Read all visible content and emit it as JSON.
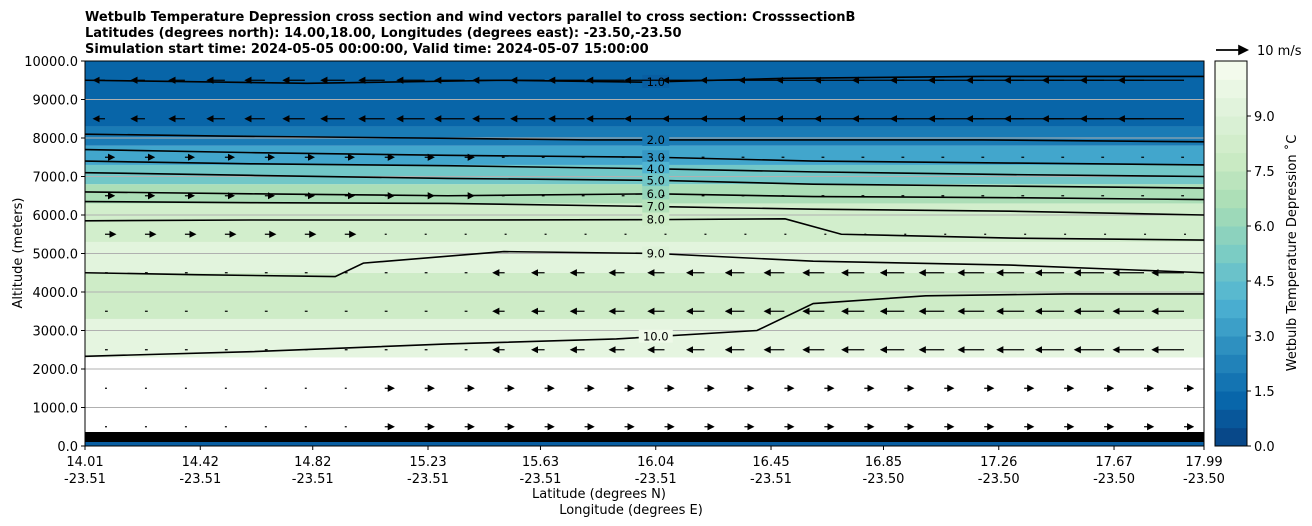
{
  "chart_data": {
    "type": "heatmap",
    "title": [
      "Wetbulb Temperature Depression cross section and wind vectors parallel to cross section: CrosssectionB",
      "Latitudes (degrees north): 14.00,18.00, Longitudes (degrees east): -23.50,-23.50",
      "Simulation start time: 2024-05-05 00:00:00, Valid time: 2024-05-07 15:00:00"
    ],
    "xlabel": "Latitude (degrees N)",
    "xlabel2": "Longitude (degrees E)",
    "ylabel": "Altitude (meters)",
    "xlim": [
      14.01,
      17.99
    ],
    "ylim": [
      0,
      10000
    ],
    "grid": "horizontal",
    "x_ticks": [
      {
        "lat": "14.01",
        "lon": "-23.51",
        "value": 14.01
      },
      {
        "lat": "14.42",
        "lon": "-23.51",
        "value": 14.42
      },
      {
        "lat": "14.82",
        "lon": "-23.51",
        "value": 14.82
      },
      {
        "lat": "15.23",
        "lon": "-23.51",
        "value": 15.23
      },
      {
        "lat": "15.63",
        "lon": "-23.51",
        "value": 15.63
      },
      {
        "lat": "16.04",
        "lon": "-23.51",
        "value": 16.04
      },
      {
        "lat": "16.45",
        "lon": "-23.51",
        "value": 16.45
      },
      {
        "lat": "16.85",
        "lon": "-23.50",
        "value": 16.85
      },
      {
        "lat": "17.26",
        "lon": "-23.50",
        "value": 17.26
      },
      {
        "lat": "17.67",
        "lon": "-23.50",
        "value": 17.67
      },
      {
        "lat": "17.99",
        "lon": "-23.50",
        "value": 17.99
      }
    ],
    "y_ticks": [
      {
        "label": "0.0",
        "value": 0
      },
      {
        "label": "1000.0",
        "value": 1000
      },
      {
        "label": "2000.0",
        "value": 2000
      },
      {
        "label": "3000.0",
        "value": 3000
      },
      {
        "label": "4000.0",
        "value": 4000
      },
      {
        "label": "5000.0",
        "value": 5000
      },
      {
        "label": "6000.0",
        "value": 6000
      },
      {
        "label": "7000.0",
        "value": 7000
      },
      {
        "label": "8000.0",
        "value": 8000
      },
      {
        "label": "9000.0",
        "value": 9000
      },
      {
        "label": "10000.0",
        "value": 10000
      }
    ],
    "colorbar": {
      "label": "Wetbulb Temperature Depression ˚C",
      "range": [
        0,
        10.5
      ],
      "ticks": [
        "0.0",
        "1.5",
        "3.0",
        "4.5",
        "6.0",
        "7.5",
        "9.0"
      ],
      "tick_values": [
        0,
        1.5,
        3.0,
        4.5,
        6.0,
        7.5,
        9.0
      ],
      "colormap": "GnBu_r",
      "colors": [
        "#084081",
        "#0868ac",
        "#2b8cbe",
        "#4eb3d3",
        "#7bccc4",
        "#a8ddb5",
        "#ccebc5",
        "#e0f3db",
        "#f7fcf0"
      ]
    },
    "vector_key": {
      "label": "10 m/s",
      "speed": 10
    },
    "layers": [
      {
        "from_m": 0,
        "to_m": 300,
        "value": 1.0
      },
      {
        "from_m": 300,
        "to_m": 2300,
        "value": 10.5
      },
      {
        "from_m": 2300,
        "to_m": 3300,
        "value": 9.5
      },
      {
        "from_m": 3300,
        "to_m": 4500,
        "value": 8.0
      },
      {
        "from_m": 4500,
        "to_m": 5300,
        "value": 9.3
      },
      {
        "from_m": 5300,
        "to_m": 6300,
        "value": 8.3
      },
      {
        "from_m": 6300,
        "to_m": 6800,
        "value": 6.7
      },
      {
        "from_m": 6800,
        "to_m": 7300,
        "value": 5.0
      },
      {
        "from_m": 7300,
        "to_m": 7800,
        "value": 3.5
      },
      {
        "from_m": 7800,
        "to_m": 8300,
        "value": 2.0
      },
      {
        "from_m": 8300,
        "to_m": 10000,
        "value": 1.2
      }
    ],
    "contours": [
      {
        "label": "1.0",
        "points": [
          [
            14.01,
            9500
          ],
          [
            14.8,
            9420
          ],
          [
            15.5,
            9500
          ],
          [
            16.0,
            9450
          ],
          [
            16.5,
            9550
          ],
          [
            17.2,
            9600
          ],
          [
            17.99,
            9600
          ]
        ]
      },
      {
        "label": "2.0",
        "points": [
          [
            14.01,
            8100
          ],
          [
            14.5,
            8050
          ],
          [
            15.2,
            8000
          ],
          [
            15.8,
            7950
          ],
          [
            16.5,
            7950
          ],
          [
            17.2,
            7950
          ],
          [
            17.99,
            7900
          ]
        ]
      },
      {
        "label": "3.0",
        "points": [
          [
            14.01,
            7700
          ],
          [
            14.6,
            7620
          ],
          [
            15.3,
            7550
          ],
          [
            16.04,
            7500
          ],
          [
            16.6,
            7400
          ],
          [
            17.3,
            7350
          ],
          [
            17.99,
            7300
          ]
        ]
      },
      {
        "label": "4.0",
        "points": [
          [
            14.01,
            7400
          ],
          [
            14.6,
            7330
          ],
          [
            15.3,
            7280
          ],
          [
            16.04,
            7200
          ],
          [
            16.6,
            7120
          ],
          [
            17.3,
            7050
          ],
          [
            17.99,
            7000
          ]
        ]
      },
      {
        "label": "5.0",
        "points": [
          [
            14.01,
            7100
          ],
          [
            14.6,
            7030
          ],
          [
            15.3,
            6950
          ],
          [
            16.04,
            6900
          ],
          [
            16.6,
            6800
          ],
          [
            17.3,
            6750
          ],
          [
            17.99,
            6700
          ]
        ]
      },
      {
        "label": "6.0",
        "points": [
          [
            14.01,
            6600
          ],
          [
            14.6,
            6550
          ],
          [
            15.3,
            6500
          ],
          [
            16.04,
            6550
          ],
          [
            16.6,
            6480
          ],
          [
            17.3,
            6450
          ],
          [
            17.99,
            6400
          ]
        ]
      },
      {
        "label": "7.0",
        "points": [
          [
            14.01,
            6350
          ],
          [
            14.6,
            6320
          ],
          [
            15.3,
            6300
          ],
          [
            16.04,
            6220
          ],
          [
            16.6,
            6150
          ],
          [
            17.3,
            6100
          ],
          [
            17.99,
            6000
          ]
        ]
      },
      {
        "label": "8.0",
        "points": [
          [
            14.01,
            5850
          ],
          [
            14.6,
            5870
          ],
          [
            15.3,
            5870
          ],
          [
            16.04,
            5880
          ],
          [
            16.5,
            5900
          ],
          [
            16.7,
            5500
          ],
          [
            17.3,
            5400
          ],
          [
            17.99,
            5350
          ]
        ]
      },
      {
        "label": "9.0",
        "points": [
          [
            14.01,
            4500
          ],
          [
            14.4,
            4450
          ],
          [
            14.9,
            4400
          ],
          [
            15.0,
            4750
          ],
          [
            15.5,
            5050
          ],
          [
            16.04,
            5000
          ],
          [
            16.6,
            4800
          ],
          [
            17.3,
            4700
          ],
          [
            17.99,
            4500
          ]
        ]
      },
      {
        "label": "10.0",
        "points": [
          [
            14.01,
            2330
          ],
          [
            14.6,
            2450
          ],
          [
            15.3,
            2650
          ],
          [
            15.9,
            2780
          ],
          [
            16.4,
            3000
          ],
          [
            16.6,
            3700
          ],
          [
            17.0,
            3900
          ],
          [
            17.5,
            3950
          ],
          [
            17.99,
            3950
          ]
        ]
      }
    ]
  }
}
